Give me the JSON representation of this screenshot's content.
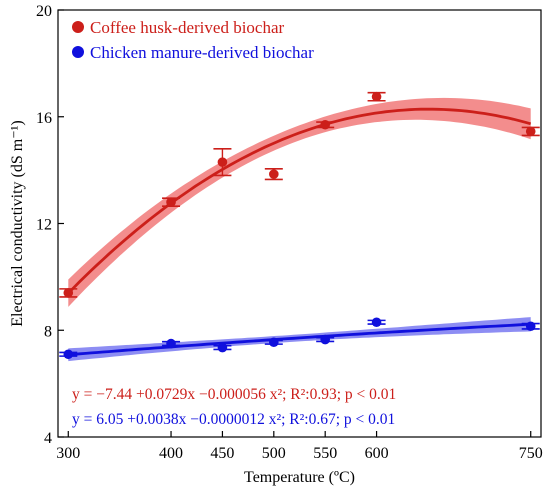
{
  "chart_data": {
    "type": "scatter",
    "xlabel": "Temperature (ºC)",
    "ylabel": "Electrical conductivity (dS m⁻¹)",
    "xlim": [
      290,
      760
    ],
    "ylim": [
      4,
      20
    ],
    "xticks": [
      300,
      400,
      450,
      500,
      550,
      600,
      750
    ],
    "yticks": [
      4,
      8,
      12,
      16,
      20
    ],
    "legend_position": "top-left",
    "series": [
      {
        "name": "Coffee husk-derived biochar",
        "color": "#cc1f1a",
        "band_color": "#f07070",
        "x": [
          300,
          400,
          450,
          500,
          550,
          600,
          750
        ],
        "y": [
          9.4,
          12.8,
          14.3,
          13.85,
          15.7,
          16.75,
          15.45
        ],
        "err": [
          0.15,
          0.15,
          0.5,
          0.2,
          0.1,
          0.15,
          0.15
        ],
        "fit": {
          "a": -7.44,
          "b": 0.0729,
          "c": -5.6e-05
        },
        "fit_label": "y = −7.44 +0.0729x −0.000056 x²; R²:0.93; p < 0.01"
      },
      {
        "name": "Chicken manure-derived biochar",
        "color": "#1010dd",
        "band_color": "#7070f0",
        "x": [
          300,
          400,
          450,
          500,
          550,
          600,
          750
        ],
        "y": [
          7.1,
          7.5,
          7.35,
          7.55,
          7.65,
          8.3,
          8.15
        ],
        "err": [
          0.07,
          0.07,
          0.07,
          0.07,
          0.07,
          0.07,
          0.1
        ],
        "fit": {
          "a": 6.05,
          "b": 0.0038,
          "c": -1.2e-06
        },
        "fit_label": "y = 6.05 +0.0038x −0.0000012 x²; R²:0.67; p < 0.01"
      }
    ]
  }
}
